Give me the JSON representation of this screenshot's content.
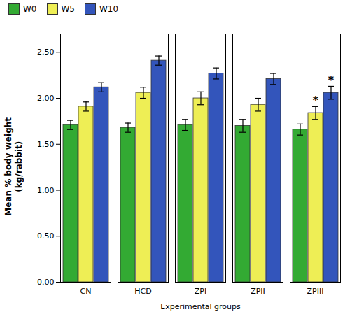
{
  "chart_data": {
    "type": "bar",
    "xlabel": "Experimental groups",
    "ylabel": "Mean % body weight\n(kg/rabbit)",
    "categories": [
      "CN",
      "HCD",
      "ZPI",
      "ZPII",
      "ZPIII"
    ],
    "series": [
      {
        "name": "W0",
        "color": "#33aa33",
        "values": [
          1.71,
          1.68,
          1.71,
          1.7,
          1.66
        ],
        "errors": [
          0.05,
          0.05,
          0.06,
          0.07,
          0.06
        ]
      },
      {
        "name": "W5",
        "color": "#eeee55",
        "values": [
          1.91,
          2.06,
          2.0,
          1.93,
          1.84
        ],
        "errors": [
          0.05,
          0.06,
          0.07,
          0.07,
          0.07
        ]
      },
      {
        "name": "W10",
        "color": "#3355bb",
        "values": [
          2.12,
          2.41,
          2.27,
          2.21,
          2.06
        ],
        "errors": [
          0.05,
          0.05,
          0.06,
          0.06,
          0.07
        ]
      }
    ],
    "ylim": [
      0.0,
      2.7
    ],
    "yticks": [
      {
        "value": 0.0,
        "label": "0.00"
      },
      {
        "value": 0.5,
        "label": "0.50"
      },
      {
        "value": 1.0,
        "label": "1.00"
      },
      {
        "value": 1.5,
        "label": "1.50"
      },
      {
        "value": 2.0,
        "label": "2.00"
      },
      {
        "value": 2.5,
        "label": "2.50"
      }
    ],
    "grid": false,
    "legend": "upper left",
    "annotations": [
      {
        "text": "*",
        "category": "ZPIII",
        "series": "W5"
      },
      {
        "text": "*",
        "category": "ZPIII",
        "series": "W10"
      }
    ]
  }
}
